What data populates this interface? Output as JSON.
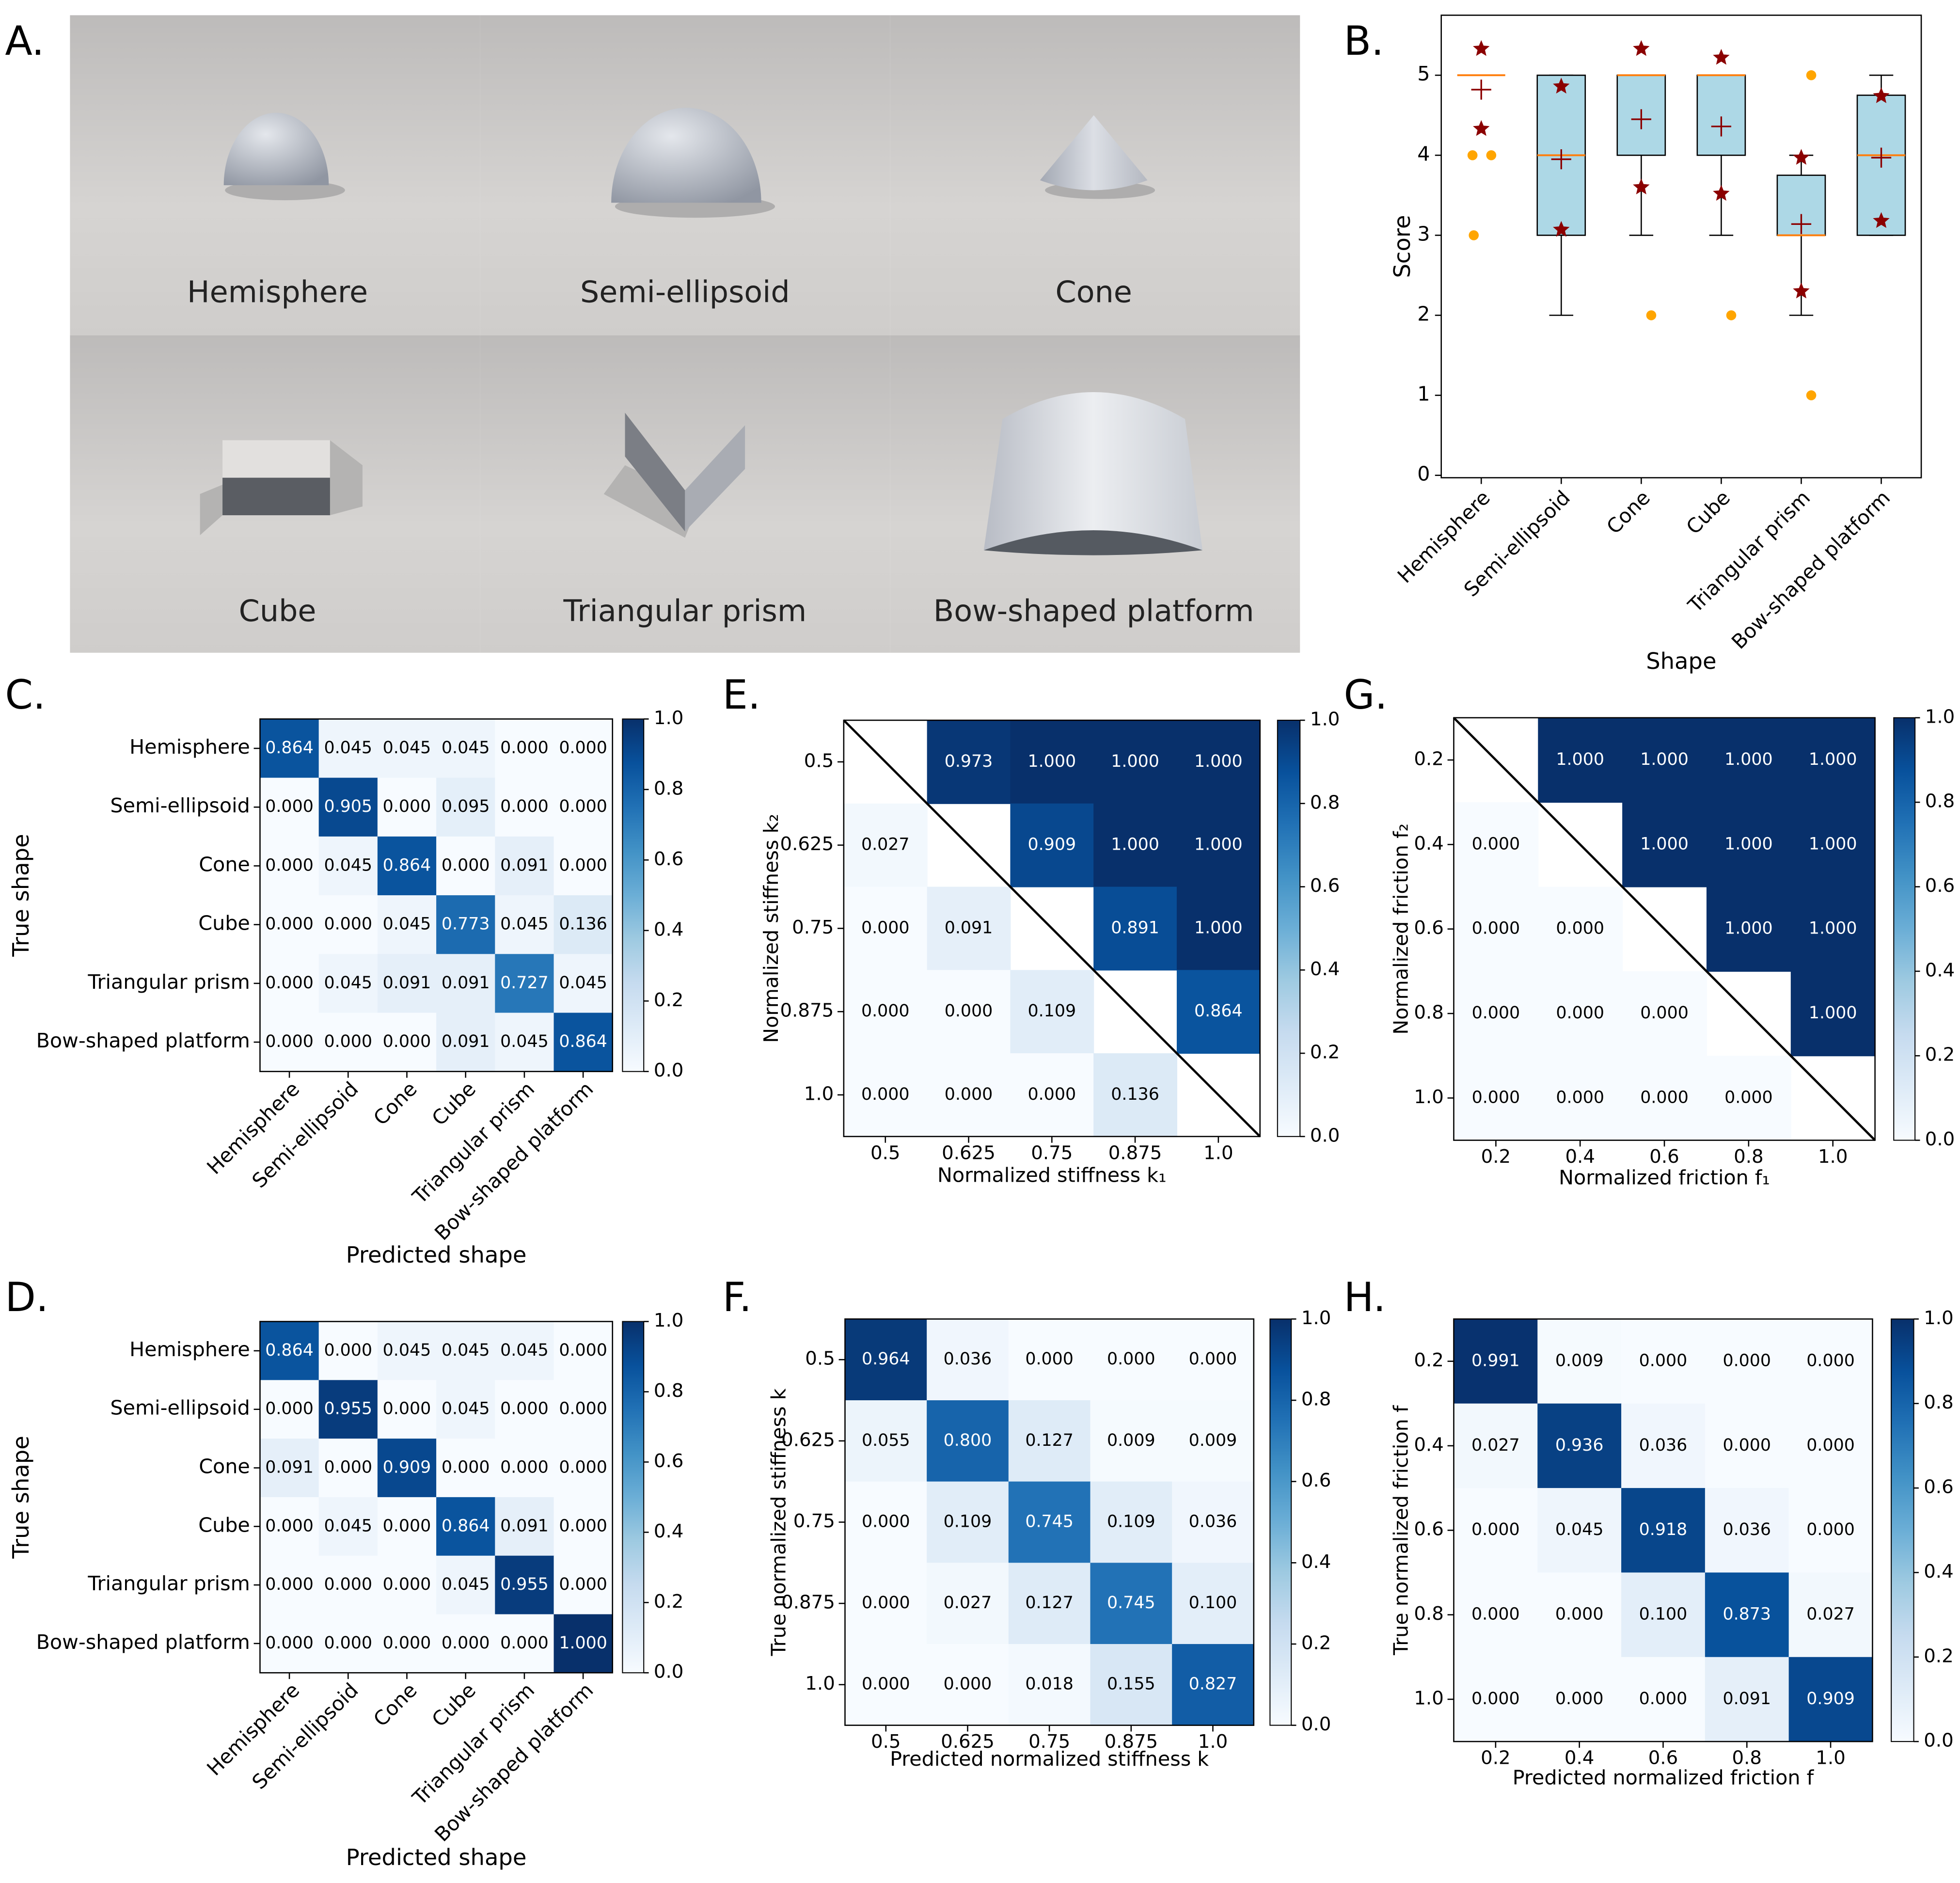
{
  "panel_a": {
    "panel": "A.",
    "captions": [
      "Hemisphere",
      "Semi-ellipsoid",
      "Cone",
      "Cube",
      "Triangular prism",
      "Bow-shaped platform"
    ]
  },
  "chart_data": [
    {
      "type": "box",
      "panel": "B.",
      "xlabel": "Shape",
      "ylabel": "Score",
      "categories": [
        "Hemisphere",
        "Semi-ellipsoid",
        "Cone",
        "Cube",
        "Triangular prism",
        "Bow-shaped platform"
      ],
      "boxes": [
        {
          "whisker_low": 5,
          "q1": 5,
          "median": 5,
          "q3": 5,
          "whisker_high": 5,
          "mean": 4.82,
          "outliers": [
            4,
            4,
            3
          ],
          "stars": [
            5.33,
            4.33
          ]
        },
        {
          "whisker_low": 2,
          "q1": 3,
          "median": 4,
          "q3": 5,
          "whisker_high": 5,
          "mean": 3.95,
          "outliers": [],
          "stars": [
            4.86,
            3.07
          ]
        },
        {
          "whisker_low": 3,
          "q1": 4,
          "median": 5,
          "q3": 5,
          "whisker_high": 5,
          "mean": 4.45,
          "outliers": [
            2
          ],
          "stars": [
            5.33,
            3.6
          ]
        },
        {
          "whisker_low": 3,
          "q1": 4,
          "median": 5,
          "q3": 5,
          "whisker_high": 5,
          "mean": 4.36,
          "outliers": [
            2
          ],
          "stars": [
            5.22,
            3.52
          ]
        },
        {
          "whisker_low": 2,
          "q1": 3,
          "median": 3,
          "q3": 3.75,
          "whisker_high": 4,
          "mean": 3.14,
          "outliers": [
            5,
            1
          ],
          "stars": [
            3.97,
            2.3
          ]
        },
        {
          "whisker_low": 3,
          "q1": 3,
          "median": 4,
          "q3": 4.75,
          "whisker_high": 5,
          "mean": 3.97,
          "outliers": [],
          "stars": [
            4.74,
            3.18
          ]
        }
      ],
      "color": "#add8e6",
      "median_color": "#ff7f0e",
      "mean_color": "#8b0000",
      "outlier_color": "#ffa500",
      "star_color": "#8b0000",
      "ylim": [
        -0.03,
        5.75
      ],
      "yticks": [
        0,
        1,
        2,
        3,
        4,
        5
      ],
      "xtick_rotation": 45
    },
    {
      "type": "heatmap",
      "panel": "C.",
      "xlabel": "Predicted shape",
      "ylabel": "True shape",
      "x_categories": [
        "Hemisphere",
        "Semi-ellipsoid",
        "Cone",
        "Cube",
        "Triangular prism",
        "Bow-shaped platform"
      ],
      "y_categories": [
        "Hemisphere",
        "Semi-ellipsoid",
        "Cone",
        "Cube",
        "Triangular prism",
        "Bow-shaped platform"
      ],
      "values": [
        [
          0.864,
          0.045,
          0.045,
          0.045,
          0,
          0
        ],
        [
          0,
          0.905,
          0,
          0.095,
          0,
          0
        ],
        [
          0,
          0.045,
          0.864,
          0,
          0.091,
          0
        ],
        [
          0,
          0,
          0.045,
          0.773,
          0.045,
          0.136
        ],
        [
          0,
          0.045,
          0.091,
          0.091,
          0.727,
          0.045
        ],
        [
          0,
          0,
          0,
          0.091,
          0.045,
          0.864
        ]
      ],
      "value_labels": [
        [
          "0.864",
          "0.045",
          "0.045",
          "0.045",
          "0.000",
          "0.000"
        ],
        [
          "0.000",
          "0.905",
          "0.000",
          "0.095",
          "0.000",
          "0.000"
        ],
        [
          "0.000",
          "0.045",
          "0.864",
          "0.000",
          "0.091",
          "0.000"
        ],
        [
          "0.000",
          "0.000",
          "0.045",
          "0.773",
          "0.045",
          "0.136"
        ],
        [
          "0.000",
          "0.045",
          "0.091",
          "0.091",
          "0.727",
          "0.045"
        ],
        [
          "0.000",
          "0.000",
          "0.000",
          "0.091",
          "0.045",
          "0.864"
        ]
      ],
      "colormap": "Blues",
      "clim": [
        0,
        1
      ],
      "cticks": [
        {
          "value": 0,
          "label": "0.0"
        },
        0.2,
        0.4,
        0.6,
        0.8,
        {
          "value": 1,
          "label": "1.0"
        }
      ],
      "xtick_rotation": 45
    },
    {
      "type": "heatmap",
      "panel": "D.",
      "xlabel": "Predicted shape",
      "ylabel": "True shape",
      "x_categories": [
        "Hemisphere",
        "Semi-ellipsoid",
        "Cone",
        "Cube",
        "Triangular prism",
        "Bow-shaped platform"
      ],
      "y_categories": [
        "Hemisphere",
        "Semi-ellipsoid",
        "Cone",
        "Cube",
        "Triangular prism",
        "Bow-shaped platform"
      ],
      "values": [
        [
          0.864,
          0,
          0.045,
          0.045,
          0.045,
          0
        ],
        [
          0,
          0.955,
          0,
          0.045,
          0,
          0
        ],
        [
          0.091,
          0,
          0.909,
          0,
          0,
          0
        ],
        [
          0,
          0.045,
          0,
          0.864,
          0.091,
          0
        ],
        [
          0,
          0,
          0,
          0.045,
          0.955,
          0
        ],
        [
          0,
          0,
          0,
          0,
          0,
          1
        ]
      ],
      "value_labels": [
        [
          "0.864",
          "0.000",
          "0.045",
          "0.045",
          "0.045",
          "0.000"
        ],
        [
          "0.000",
          "0.955",
          "0.000",
          "0.045",
          "0.000",
          "0.000"
        ],
        [
          "0.091",
          "0.000",
          "0.909",
          "0.000",
          "0.000",
          "0.000"
        ],
        [
          "0.000",
          "0.045",
          "0.000",
          "0.864",
          "0.091",
          "0.000"
        ],
        [
          "0.000",
          "0.000",
          "0.000",
          "0.045",
          "0.955",
          "0.000"
        ],
        [
          "0.000",
          "0.000",
          "0.000",
          "0.000",
          "0.000",
          "1.000"
        ]
      ],
      "colormap": "Blues",
      "clim": [
        0,
        1
      ],
      "cticks": [
        {
          "value": 0,
          "label": "0.0"
        },
        0.2,
        0.4,
        0.6,
        0.8,
        {
          "value": 1,
          "label": "1.0"
        }
      ],
      "xtick_rotation": 45
    },
    {
      "type": "heatmap",
      "panel": "E.",
      "xlabel": "Normalized stiffness k₁",
      "ylabel": "Normalized stiffness k₂",
      "x_categories": [
        "0.5",
        "0.625",
        "0.75",
        "0.875",
        "1.0"
      ],
      "y_categories": [
        "0.5",
        "0.625",
        "0.75",
        "0.875",
        "1.0"
      ],
      "values": [
        [
          null,
          0.973,
          1,
          1,
          1
        ],
        [
          0.027,
          null,
          0.909,
          1,
          1
        ],
        [
          0,
          0.091,
          null,
          0.891,
          1
        ],
        [
          0,
          0,
          0.109,
          null,
          0.864
        ],
        [
          0,
          0,
          0,
          0.136,
          null
        ]
      ],
      "value_labels": [
        [
          null,
          "0.973",
          "1.000",
          "1.000",
          "1.000"
        ],
        [
          "0.027",
          null,
          "0.909",
          "1.000",
          "1.000"
        ],
        [
          "0.000",
          "0.091",
          null,
          "0.891",
          "1.000"
        ],
        [
          "0.000",
          "0.000",
          "0.109",
          null,
          "0.864"
        ],
        [
          "0.000",
          "0.000",
          "0.000",
          "0.136",
          null
        ]
      ],
      "colormap": "Blues",
      "clim": [
        0,
        1
      ],
      "cticks": [
        {
          "value": 0,
          "label": "0.0"
        },
        0.2,
        0.4,
        0.6,
        0.8,
        {
          "value": 1,
          "label": "1.0"
        }
      ],
      "diagonal_line": true
    },
    {
      "type": "heatmap",
      "panel": "F.",
      "xlabel": "Predicted normalized stiffness k",
      "ylabel": "True normalized stiffness k",
      "x_categories": [
        "0.5",
        "0.625",
        "0.75",
        "0.875",
        "1.0"
      ],
      "y_categories": [
        "0.5",
        "0.625",
        "0.75",
        "0.875",
        "1.0"
      ],
      "values": [
        [
          0.964,
          0.036,
          0,
          0,
          0
        ],
        [
          0.055,
          0.8,
          0.127,
          0.009,
          0.009
        ],
        [
          0,
          0.109,
          0.745,
          0.109,
          0.036
        ],
        [
          0,
          0.027,
          0.127,
          0.745,
          0.1
        ],
        [
          0,
          0,
          0.018,
          0.155,
          0.827
        ]
      ],
      "value_labels": [
        [
          "0.964",
          "0.036",
          "0.000",
          "0.000",
          "0.000"
        ],
        [
          "0.055",
          "0.800",
          "0.127",
          "0.009",
          "0.009"
        ],
        [
          "0.000",
          "0.109",
          "0.745",
          "0.109",
          "0.036"
        ],
        [
          "0.000",
          "0.027",
          "0.127",
          "0.745",
          "0.100"
        ],
        [
          "0.000",
          "0.000",
          "0.018",
          "0.155",
          "0.827"
        ]
      ],
      "colormap": "Blues",
      "clim": [
        0,
        1
      ],
      "cticks": [
        {
          "value": 0,
          "label": "0.0"
        },
        0.2,
        0.4,
        0.6,
        0.8,
        {
          "value": 1,
          "label": "1.0"
        }
      ]
    },
    {
      "type": "heatmap",
      "panel": "G.",
      "xlabel": "Normalized friction f₁",
      "ylabel": "Normalized friction f₂",
      "x_categories": [
        "0.2",
        "0.4",
        "0.6",
        "0.8",
        "1.0"
      ],
      "y_categories": [
        "0.2",
        "0.4",
        "0.6",
        "0.8",
        "1.0"
      ],
      "values": [
        [
          null,
          1,
          1,
          1,
          1
        ],
        [
          0,
          null,
          1,
          1,
          1
        ],
        [
          0,
          0,
          null,
          1,
          1
        ],
        [
          0,
          0,
          0,
          null,
          1
        ],
        [
          0,
          0,
          0,
          0,
          null
        ]
      ],
      "value_labels": [
        [
          null,
          "1.000",
          "1.000",
          "1.000",
          "1.000"
        ],
        [
          "0.000",
          null,
          "1.000",
          "1.000",
          "1.000"
        ],
        [
          "0.000",
          "0.000",
          null,
          "1.000",
          "1.000"
        ],
        [
          "0.000",
          "0.000",
          "0.000",
          null,
          "1.000"
        ],
        [
          "0.000",
          "0.000",
          "0.000",
          "0.000",
          null
        ]
      ],
      "colormap": "Blues",
      "clim": [
        0,
        1
      ],
      "cticks": [
        {
          "value": 0,
          "label": "0.0"
        },
        0.2,
        0.4,
        0.6,
        0.8,
        {
          "value": 1,
          "label": "1.0"
        }
      ],
      "diagonal_line": true
    },
    {
      "type": "heatmap",
      "panel": "H.",
      "xlabel": "Predicted normalized friction f",
      "ylabel": "True normalized friction f",
      "x_categories": [
        "0.2",
        "0.4",
        "0.6",
        "0.8",
        "1.0"
      ],
      "y_categories": [
        "0.2",
        "0.4",
        "0.6",
        "0.8",
        "1.0"
      ],
      "values": [
        [
          0.991,
          0.009,
          0,
          0,
          0
        ],
        [
          0.027,
          0.936,
          0.036,
          0,
          0
        ],
        [
          0,
          0.045,
          0.918,
          0.036,
          0
        ],
        [
          0,
          0,
          0.1,
          0.873,
          0.027
        ],
        [
          0,
          0,
          0,
          0.091,
          0.909
        ]
      ],
      "value_labels": [
        [
          "0.991",
          "0.009",
          "0.000",
          "0.000",
          "0.000"
        ],
        [
          "0.027",
          "0.936",
          "0.036",
          "0.000",
          "0.000"
        ],
        [
          "0.000",
          "0.045",
          "0.918",
          "0.036",
          "0.000"
        ],
        [
          "0.000",
          "0.000",
          "0.100",
          "0.873",
          "0.027"
        ],
        [
          "0.000",
          "0.000",
          "0.000",
          "0.091",
          "0.909"
        ]
      ],
      "colormap": "Blues",
      "clim": [
        0,
        1
      ],
      "cticks": [
        {
          "value": 0,
          "label": "0.0"
        },
        0.2,
        0.4,
        0.6,
        0.8,
        {
          "value": 1,
          "label": "1.0"
        }
      ]
    }
  ]
}
